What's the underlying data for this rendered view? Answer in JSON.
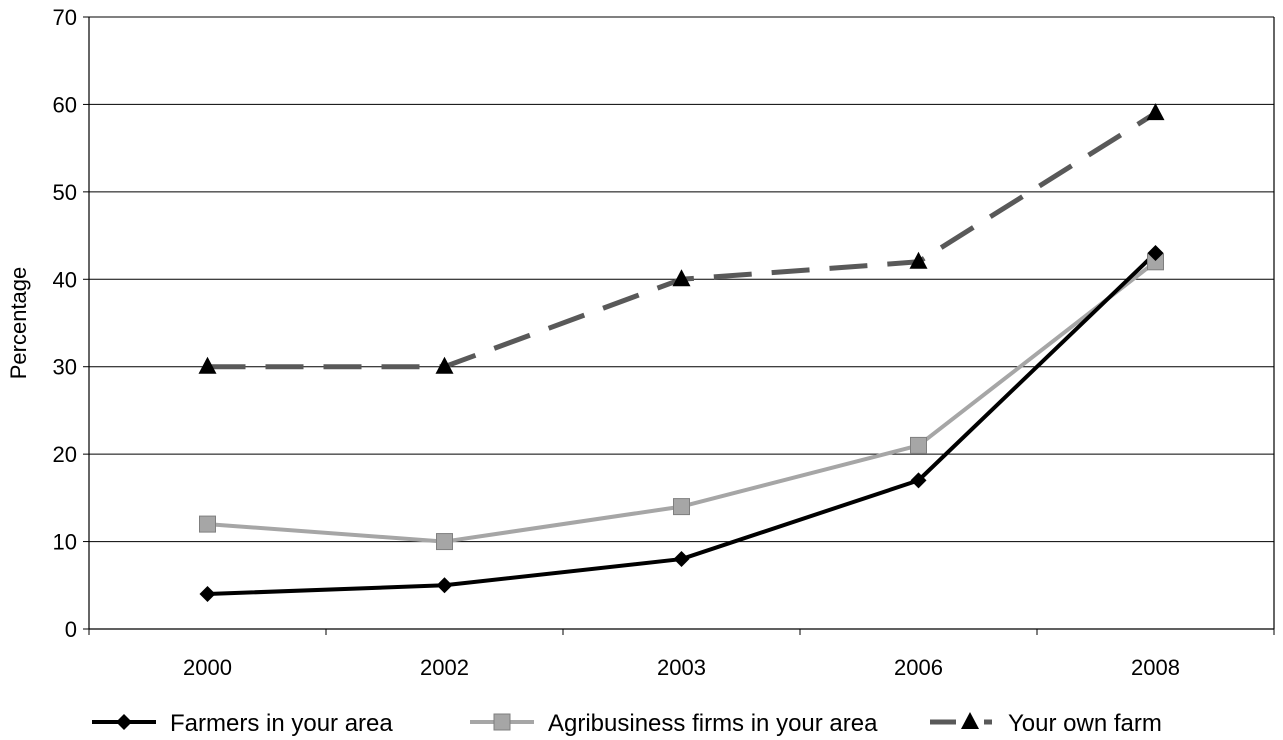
{
  "chart_data": {
    "type": "line",
    "title": "",
    "xlabel": "",
    "ylabel": "Percentage",
    "categories": [
      "2000",
      "2002",
      "2003",
      "2006",
      "2008"
    ],
    "ylim": [
      0,
      70
    ],
    "yticks": [
      "0",
      "10",
      "20",
      "30",
      "40",
      "50",
      "60",
      "70"
    ],
    "grid": "horizontal",
    "legend_position": "bottom",
    "series": [
      {
        "name": "Farmers in your area",
        "values": [
          4,
          5,
          8,
          17,
          43
        ],
        "color": "#000000",
        "marker": "diamond",
        "line_style": "solid"
      },
      {
        "name": "Agribusiness firms in your area",
        "values": [
          12,
          10,
          14,
          21,
          42
        ],
        "color": "#a6a6a6",
        "marker": "square",
        "line_style": "solid"
      },
      {
        "name": "Your own farm",
        "values": [
          30,
          30,
          40,
          42,
          59
        ],
        "color": "#595959",
        "marker": "triangle",
        "line_style": "dashed"
      }
    ]
  }
}
